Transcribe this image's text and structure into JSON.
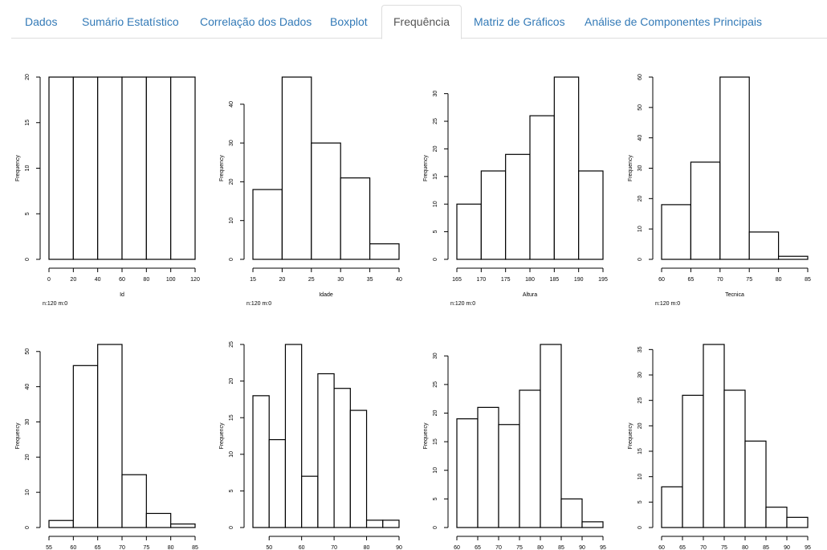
{
  "tabs": [
    {
      "label": "Dados"
    },
    {
      "label": "Sumário Estatístico"
    },
    {
      "label": "Correlação dos Dados"
    },
    {
      "label": "Boxplot"
    },
    {
      "label": "Frequência",
      "active": true
    },
    {
      "label": "Matriz de Gráficos"
    },
    {
      "label": "Análise de Componentes Principais"
    }
  ],
  "colors": {
    "tab_text": "#337ab7",
    "active_tab_text": "#555555",
    "border": "#dddddd"
  },
  "chart_data": [
    {
      "type": "bar",
      "xlabel": "Id",
      "ylabel": "Frequency",
      "subtitle": "n:120 m:0",
      "breaks": [
        0,
        20,
        40,
        60,
        80,
        100,
        120
      ],
      "values": [
        20,
        20,
        20,
        20,
        20,
        20
      ],
      "xticks": [
        0,
        20,
        40,
        60,
        80,
        100,
        120
      ],
      "yticks": [
        0,
        5,
        10,
        15,
        20
      ],
      "xlim": [
        0,
        120
      ],
      "ylim": [
        0,
        20
      ]
    },
    {
      "type": "bar",
      "xlabel": "Idade",
      "ylabel": "Frequency",
      "subtitle": "n:120 m:0",
      "breaks": [
        15,
        20,
        25,
        30,
        35,
        40
      ],
      "values": [
        18,
        47,
        30,
        21,
        4
      ],
      "xticks": [
        15,
        20,
        25,
        30,
        35,
        40
      ],
      "yticks": [
        0,
        10,
        20,
        30,
        40
      ],
      "xlim": [
        15,
        40
      ],
      "ylim": [
        0,
        47
      ]
    },
    {
      "type": "bar",
      "xlabel": "Altura",
      "ylabel": "Frequency",
      "subtitle": "n:120 m:0",
      "breaks": [
        165,
        170,
        175,
        180,
        185,
        190,
        195
      ],
      "values": [
        10,
        16,
        19,
        26,
        33,
        16
      ],
      "xticks": [
        165,
        170,
        175,
        180,
        185,
        190,
        195
      ],
      "yticks": [
        0,
        5,
        10,
        15,
        20,
        25,
        30
      ],
      "xlim": [
        165,
        195
      ],
      "ylim": [
        0,
        33
      ]
    },
    {
      "type": "bar",
      "xlabel": "Tecnica",
      "ylabel": "Frequency",
      "subtitle": "n:120 m:0",
      "breaks": [
        60,
        65,
        70,
        75,
        80,
        85
      ],
      "values": [
        18,
        32,
        60,
        9,
        1
      ],
      "xticks": [
        60,
        65,
        70,
        75,
        80,
        85
      ],
      "yticks": [
        0,
        10,
        20,
        30,
        40,
        50,
        60
      ],
      "xlim": [
        60,
        85
      ],
      "ylim": [
        0,
        60
      ]
    },
    {
      "type": "bar",
      "xlabel": "",
      "ylabel": "Frequency",
      "breaks": [
        55,
        60,
        65,
        70,
        75,
        80,
        85
      ],
      "values": [
        2,
        46,
        52,
        15,
        4,
        1
      ],
      "xticks": [
        55,
        60,
        65,
        70,
        75,
        80,
        85
      ],
      "yticks": [
        0,
        10,
        20,
        30,
        40,
        50
      ],
      "xlim": [
        55,
        85
      ],
      "ylim": [
        0,
        52
      ]
    },
    {
      "type": "bar",
      "xlabel": "",
      "ylabel": "Frequency",
      "breaks": [
        45,
        50,
        55,
        60,
        65,
        70,
        75,
        80,
        85,
        90
      ],
      "values": [
        18,
        12,
        25,
        7,
        21,
        19,
        16,
        1,
        1
      ],
      "xticks": [
        50,
        60,
        70,
        80,
        90
      ],
      "yticks": [
        0,
        5,
        10,
        15,
        20,
        25
      ],
      "xlim": [
        45,
        90
      ],
      "ylim": [
        0,
        25
      ]
    },
    {
      "type": "bar",
      "xlabel": "",
      "ylabel": "Frequency",
      "breaks": [
        60,
        65,
        70,
        75,
        80,
        85,
        90,
        95
      ],
      "values": [
        19,
        21,
        18,
        24,
        32,
        5,
        1
      ],
      "xticks": [
        60,
        65,
        70,
        75,
        80,
        85,
        90,
        95
      ],
      "yticks": [
        0,
        5,
        10,
        15,
        20,
        25,
        30
      ],
      "xlim": [
        60,
        95
      ],
      "ylim": [
        0,
        32
      ]
    },
    {
      "type": "bar",
      "xlabel": "",
      "ylabel": "Frequency",
      "breaks": [
        60,
        65,
        70,
        75,
        80,
        85,
        90,
        95
      ],
      "values": [
        8,
        26,
        36,
        27,
        17,
        4,
        2
      ],
      "xticks": [
        60,
        65,
        70,
        75,
        80,
        85,
        90,
        95
      ],
      "yticks": [
        0,
        5,
        10,
        15,
        20,
        25,
        30,
        35
      ],
      "xlim": [
        60,
        95
      ],
      "ylim": [
        0,
        36
      ]
    }
  ]
}
